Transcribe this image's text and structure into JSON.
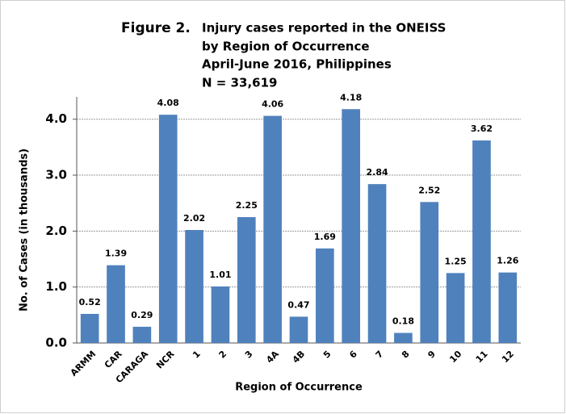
{
  "chart_data": {
    "type": "bar",
    "figure_label": "Figure 2.",
    "title": [
      "Injury cases reported in the ONEISS",
      "by Region of Occurrence",
      "April-June 2016,  Philippines",
      "N =   33,619"
    ],
    "x_label": "Region of Occurrence",
    "y_label": "No. of Cases     (in thousands)",
    "categories": [
      "ARMM",
      "CAR",
      "CARAGA",
      "NCR",
      "1",
      "2",
      "3",
      "4A",
      "4B",
      "5",
      "6",
      "7",
      "8",
      "9",
      "10",
      "11",
      "12"
    ],
    "values": [
      0.52,
      1.39,
      0.29,
      4.08,
      2.02,
      1.01,
      2.25,
      4.06,
      0.47,
      1.69,
      4.18,
      2.84,
      0.18,
      2.52,
      1.25,
      3.62,
      1.26
    ],
    "color": "#4f81bd",
    "ylim": [
      0,
      4.4
    ],
    "yticks": [
      {
        "value": 0,
        "label": "0.0"
      },
      {
        "value": 1,
        "label": "1.0"
      },
      {
        "value": 2,
        "label": "2.0"
      },
      {
        "value": 3,
        "label": "3.0"
      },
      {
        "value": 4,
        "label": "4.0"
      }
    ],
    "grid": true
  }
}
